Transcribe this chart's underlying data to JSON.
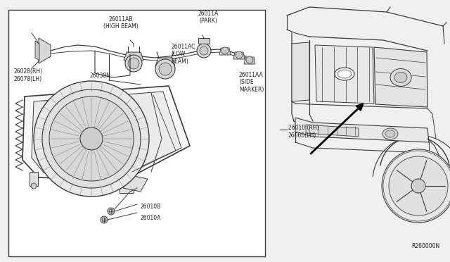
{
  "bg_color": "#f0f0f0",
  "line_color": "#3a3a3a",
  "text_color": "#222222",
  "ref_code": "R260000N",
  "font_size": 5.5,
  "labels": {
    "26011AB": "26011AB\n(HIGH BEAM)",
    "26011A": "26011A\n(PARK)",
    "26011AC": "26011AC\n(LOW\nBEAM)",
    "26038N": "26038N",
    "26028": "26028(RH)\n26078(LH)",
    "26011AA": "26011AA\n(SIDE\nMARKER)",
    "26010B": "26010B",
    "26010A": "26010A",
    "26010RH": "26010 (RH)\n26060(LH)"
  }
}
